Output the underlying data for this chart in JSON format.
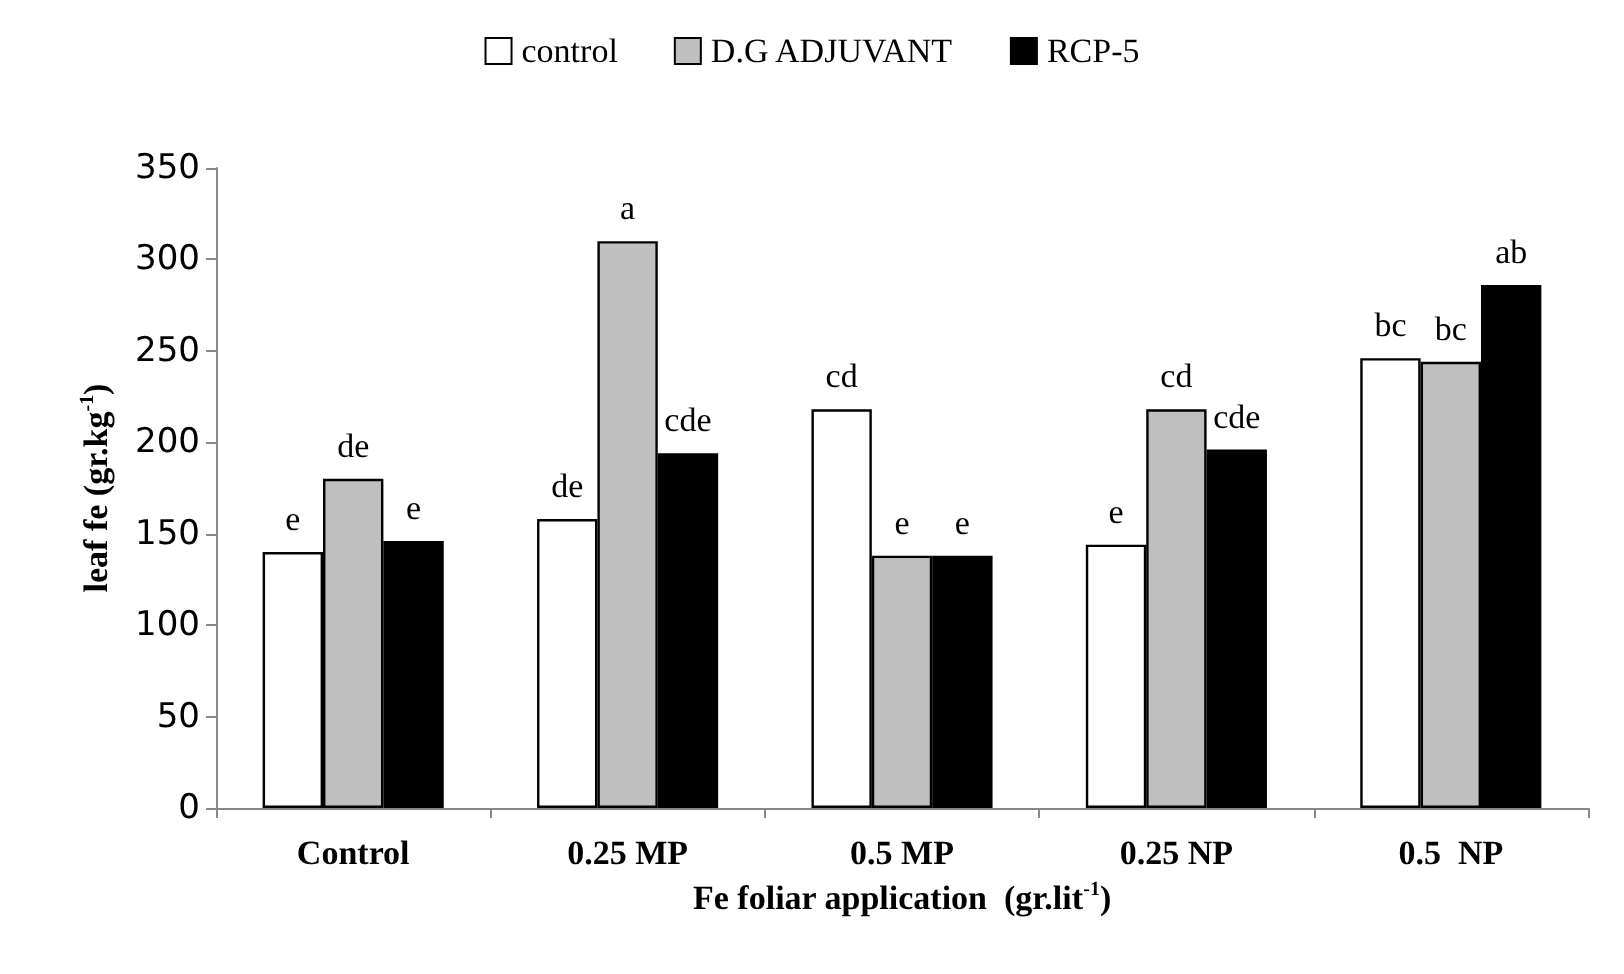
{
  "chart_data": {
    "type": "bar",
    "xlabel": "Fe foliar application  (gr.lit$^{-1}$)",
    "ylabel": "leaf fe (gr.kg$^{-1}$)",
    "categories": [
      "Control",
      "0.25 MP",
      "0.5 MP",
      "0.25 NP",
      "0.5  NP"
    ],
    "series": [
      {
        "name": "control",
        "color": "#ffffff",
        "values": [
          140,
          158,
          218,
          144,
          246
        ],
        "value_labels": [
          "e",
          "de",
          "cd",
          "e",
          "bc"
        ]
      },
      {
        "name": "D.G ADJUVANT",
        "color": "#bfbfbf",
        "values": [
          180,
          310,
          138,
          218,
          244
        ],
        "value_labels": [
          "de",
          "a",
          "e",
          "cd",
          "bc"
        ]
      },
      {
        "name": "RCP-5",
        "color": "#000000",
        "values": [
          146,
          194,
          138,
          196,
          286
        ],
        "value_labels": [
          "e",
          "cde",
          "e",
          "cde",
          "ab"
        ]
      }
    ],
    "ylim": [
      0,
      350
    ],
    "yticks": [
      0,
      50,
      100,
      150,
      200,
      250,
      300,
      350
    ],
    "grid": false,
    "legend": "top"
  }
}
